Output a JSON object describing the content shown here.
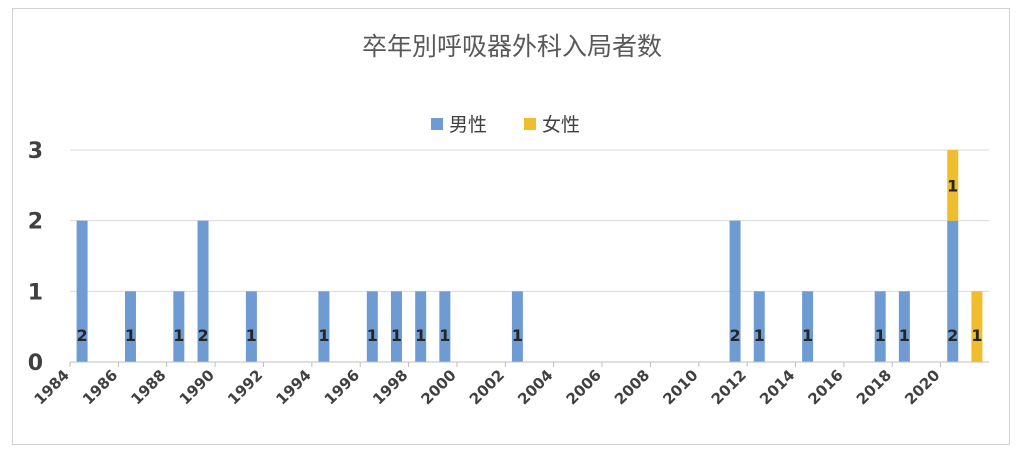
{
  "chart_data": {
    "type": "bar",
    "stacked": true,
    "title": "卒年別呼吸器外科入局者数",
    "xlabel": "",
    "ylabel": "",
    "ylim": [
      0,
      3
    ],
    "yticks": [
      "0",
      "1",
      "2",
      "3"
    ],
    "xlim": [
      1984,
      2022
    ],
    "xticks": [
      "1984",
      "1986",
      "1988",
      "1990",
      "1992",
      "1994",
      "1996",
      "1998",
      "2000",
      "2002",
      "2004",
      "2006",
      "2008",
      "2010",
      "2012",
      "2014",
      "2016",
      "2018",
      "2020"
    ],
    "grid": true,
    "legend_position": "top-center",
    "series": [
      {
        "name": "男性",
        "color": "#6f9bd3",
        "points": [
          {
            "x": 1984.5,
            "y": 2,
            "label": "2"
          },
          {
            "x": 1986.5,
            "y": 1,
            "label": "1"
          },
          {
            "x": 1988.5,
            "y": 1,
            "label": "1"
          },
          {
            "x": 1989.5,
            "y": 2,
            "label": "2"
          },
          {
            "x": 1991.5,
            "y": 1,
            "label": "1"
          },
          {
            "x": 1994.5,
            "y": 1,
            "label": "1"
          },
          {
            "x": 1996.5,
            "y": 1,
            "label": "1"
          },
          {
            "x": 1997.5,
            "y": 1,
            "label": "1"
          },
          {
            "x": 1998.5,
            "y": 1,
            "label": "1"
          },
          {
            "x": 1999.5,
            "y": 1,
            "label": "1"
          },
          {
            "x": 2002.5,
            "y": 1,
            "label": "1"
          },
          {
            "x": 2011.5,
            "y": 2,
            "label": "2"
          },
          {
            "x": 2012.5,
            "y": 1,
            "label": "1"
          },
          {
            "x": 2014.5,
            "y": 1,
            "label": "1"
          },
          {
            "x": 2017.5,
            "y": 1,
            "label": "1"
          },
          {
            "x": 2018.5,
            "y": 1,
            "label": "1"
          },
          {
            "x": 2020.5,
            "y": 2,
            "label": "2"
          }
        ]
      },
      {
        "name": "女性",
        "color": "#f0bd2c",
        "points": [
          {
            "x": 2020.5,
            "y": 1,
            "label": "1"
          },
          {
            "x": 2021.5,
            "y": 1,
            "label": "1"
          }
        ]
      }
    ]
  }
}
